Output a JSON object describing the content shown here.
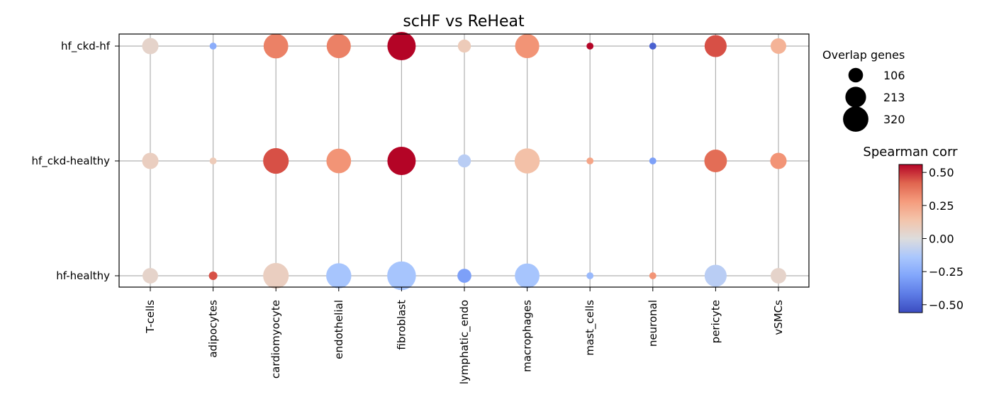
{
  "chart_data": {
    "type": "scatter",
    "title": "scHF vs ReHeat",
    "x_categories": [
      "T-cells",
      "adipocytes",
      "cardiomyocyte",
      "endothelial",
      "fibroblast",
      "lymphatic_endo",
      "macrophages",
      "mast_cells",
      "neuronal",
      "pericyte",
      "vSMCs"
    ],
    "y_categories": [
      "hf_ckd-hf",
      "hf_ckd-healthy",
      "hf-healthy"
    ],
    "grid": true,
    "size_legend": {
      "title": "Overlap genes",
      "entries": [
        {
          "label": "106",
          "value": 106
        },
        {
          "label": "213",
          "value": 213
        },
        {
          "label": "320",
          "value": 320
        }
      ]
    },
    "colorbar": {
      "title": "Spearman corr",
      "range": [
        -0.56,
        0.56
      ],
      "ticks": [
        {
          "label": "0.50",
          "value": 0.5
        },
        {
          "label": "0.25",
          "value": 0.25
        },
        {
          "label": "0.00",
          "value": 0.0
        },
        {
          "label": "−0.25",
          "value": -0.25
        },
        {
          "label": "−0.50",
          "value": -0.5
        }
      ],
      "colormap": "coolwarm"
    },
    "points": [
      {
        "x": "T-cells",
        "y": "hf_ckd-hf",
        "overlap": 110,
        "corr": 0.05
      },
      {
        "x": "adipocytes",
        "y": "hf_ckd-hf",
        "overlap": 20,
        "corr": -0.25
      },
      {
        "x": "cardiomyocyte",
        "y": "hf_ckd-hf",
        "overlap": 250,
        "corr": 0.35
      },
      {
        "x": "endothelial",
        "y": "hf_ckd-hf",
        "overlap": 240,
        "corr": 0.35
      },
      {
        "x": "fibroblast",
        "y": "hf_ckd-hf",
        "overlap": 330,
        "corr": 0.58
      },
      {
        "x": "lymphatic_endo",
        "y": "hf_ckd-hf",
        "overlap": 70,
        "corr": 0.1
      },
      {
        "x": "macrophages",
        "y": "hf_ckd-hf",
        "overlap": 240,
        "corr": 0.3
      },
      {
        "x": "mast_cells",
        "y": "hf_ckd-hf",
        "overlap": 20,
        "corr": 0.56
      },
      {
        "x": "neuronal",
        "y": "hf_ckd-hf",
        "overlap": 20,
        "corr": -0.5
      },
      {
        "x": "pericyte",
        "y": "hf_ckd-hf",
        "overlap": 200,
        "corr": 0.45
      },
      {
        "x": "vSMCs",
        "y": "hf_ckd-hf",
        "overlap": 100,
        "corr": 0.2
      },
      {
        "x": "T-cells",
        "y": "hf_ckd-healthy",
        "overlap": 110,
        "corr": 0.08
      },
      {
        "x": "adipocytes",
        "y": "hf_ckd-healthy",
        "overlap": 20,
        "corr": 0.1
      },
      {
        "x": "cardiomyocyte",
        "y": "hf_ckd-healthy",
        "overlap": 270,
        "corr": 0.45
      },
      {
        "x": "endothelial",
        "y": "hf_ckd-healthy",
        "overlap": 250,
        "corr": 0.3
      },
      {
        "x": "fibroblast",
        "y": "hf_ckd-healthy",
        "overlap": 330,
        "corr": 0.58
      },
      {
        "x": "lymphatic_endo",
        "y": "hf_ckd-healthy",
        "overlap": 70,
        "corr": -0.1
      },
      {
        "x": "macrophages",
        "y": "hf_ckd-healthy",
        "overlap": 260,
        "corr": 0.15
      },
      {
        "x": "mast_cells",
        "y": "hf_ckd-healthy",
        "overlap": 20,
        "corr": 0.25
      },
      {
        "x": "neuronal",
        "y": "hf_ckd-healthy",
        "overlap": 20,
        "corr": -0.3
      },
      {
        "x": "pericyte",
        "y": "hf_ckd-healthy",
        "overlap": 210,
        "corr": 0.4
      },
      {
        "x": "vSMCs",
        "y": "hf_ckd-healthy",
        "overlap": 110,
        "corr": 0.3
      },
      {
        "x": "T-cells",
        "y": "hf-healthy",
        "overlap": 100,
        "corr": 0.05
      },
      {
        "x": "adipocytes",
        "y": "hf-healthy",
        "overlap": 30,
        "corr": 0.45
      },
      {
        "x": "cardiomyocyte",
        "y": "hf-healthy",
        "overlap": 270,
        "corr": 0.08
      },
      {
        "x": "endothelial",
        "y": "hf-healthy",
        "overlap": 260,
        "corr": -0.15
      },
      {
        "x": "fibroblast",
        "y": "hf-healthy",
        "overlap": 340,
        "corr": -0.15
      },
      {
        "x": "lymphatic_endo",
        "y": "hf-healthy",
        "overlap": 80,
        "corr": -0.3
      },
      {
        "x": "macrophages",
        "y": "hf-healthy",
        "overlap": 250,
        "corr": -0.15
      },
      {
        "x": "mast_cells",
        "y": "hf-healthy",
        "overlap": 20,
        "corr": -0.2
      },
      {
        "x": "neuronal",
        "y": "hf-healthy",
        "overlap": 20,
        "corr": 0.3
      },
      {
        "x": "pericyte",
        "y": "hf-healthy",
        "overlap": 200,
        "corr": -0.1
      },
      {
        "x": "vSMCs",
        "y": "hf-healthy",
        "overlap": 100,
        "corr": 0.05
      }
    ]
  }
}
